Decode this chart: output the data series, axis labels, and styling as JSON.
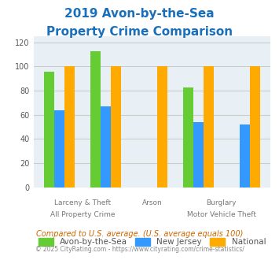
{
  "title_line1": "2019 Avon-by-the-Sea",
  "title_line2": "Property Crime Comparison",
  "title_color": "#1a6fbb",
  "categories": [
    "All Property Crime",
    "Larceny & Theft",
    "Arson",
    "Burglary",
    "Motor Vehicle Theft"
  ],
  "series": [
    {
      "name": "Avon-by-the-Sea",
      "color": "#66cc33",
      "values": [
        96,
        113,
        0,
        83,
        0
      ]
    },
    {
      "name": "New Jersey",
      "color": "#3399ff",
      "values": [
        64,
        67,
        0,
        54,
        52
      ]
    },
    {
      "name": "National",
      "color": "#ffaa00",
      "values": [
        100,
        100,
        100,
        100,
        100
      ]
    }
  ],
  "ylim": [
    0,
    125
  ],
  "yticks": [
    0,
    20,
    40,
    60,
    80,
    100,
    120
  ],
  "grid_color": "#cccccc",
  "bg_color": "#e8f0f5",
  "bar_width": 0.22,
  "footnote1": "Compared to U.S. average. (U.S. average equals 100)",
  "footnote2": "© 2025 CityRating.com - https://www.cityrating.com/crime-statistics/",
  "footnote1_color": "#cc6600",
  "footnote2_color": "#888888",
  "label_color": "#777777"
}
